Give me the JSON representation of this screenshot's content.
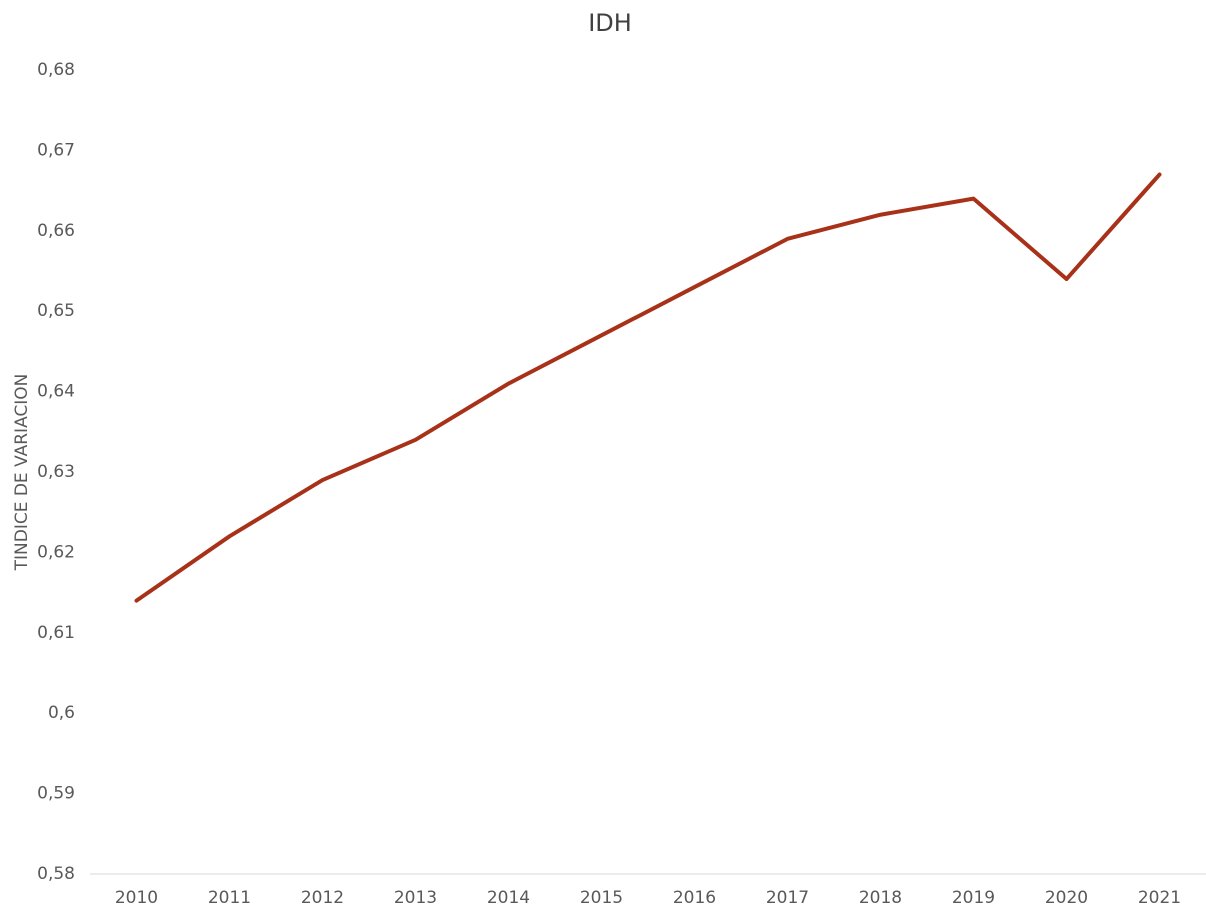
{
  "chart_data": {
    "type": "line",
    "title": "IDH",
    "y_label": "TINDICE DE VARIACION",
    "categories": [
      "2010",
      "2011",
      "2012",
      "2013",
      "2014",
      "2015",
      "2016",
      "2017",
      "2018",
      "2019",
      "2020",
      "2021"
    ],
    "series": [
      {
        "name": "IDH",
        "color": "#a83219",
        "values": [
          0.614,
          0.622,
          0.629,
          0.634,
          0.641,
          0.647,
          0.653,
          0.659,
          0.662,
          0.664,
          0.654,
          0.667
        ]
      }
    ],
    "ylim": [
      0.58,
      0.68
    ],
    "yticks": [
      {
        "value": 0.58,
        "label": "0,58"
      },
      {
        "value": 0.59,
        "label": "0,59"
      },
      {
        "value": 0.6,
        "label": "0,6"
      },
      {
        "value": 0.61,
        "label": "0,61"
      },
      {
        "value": 0.62,
        "label": "0,62"
      },
      {
        "value": 0.63,
        "label": "0,63"
      },
      {
        "value": 0.64,
        "label": "0,64"
      },
      {
        "value": 0.65,
        "label": "0,65"
      },
      {
        "value": 0.66,
        "label": "0,66"
      },
      {
        "value": 0.67,
        "label": "0,67"
      },
      {
        "value": 0.68,
        "label": "0,68"
      }
    ],
    "grid": false
  }
}
